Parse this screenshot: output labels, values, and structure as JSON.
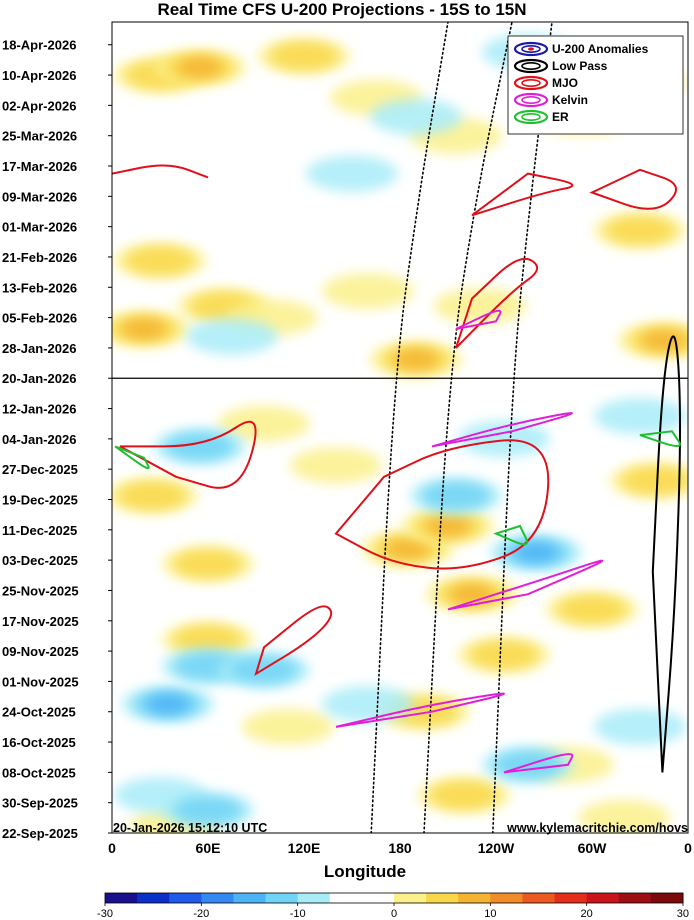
{
  "chart_data": {
    "type": "heatmap",
    "title": "Real Time CFS U-200 Projections - 15S to 15N",
    "xlabel": "Longitude",
    "x_ticks": [
      "0",
      "60E",
      "120E",
      "180",
      "120W",
      "60W",
      "0"
    ],
    "y_ticks": [
      "18-Apr-2026",
      "10-Apr-2026",
      "02-Apr-2026",
      "25-Mar-2026",
      "17-Mar-2026",
      "09-Mar-2026",
      "01-Mar-2026",
      "21-Feb-2026",
      "13-Feb-2026",
      "05-Feb-2026",
      "28-Jan-2026",
      "20-Jan-2026",
      "12-Jan-2026",
      "04-Jan-2026",
      "27-Dec-2025",
      "19-Dec-2025",
      "11-Dec-2025",
      "03-Dec-2025",
      "25-Nov-2025",
      "17-Nov-2025",
      "09-Nov-2025",
      "01-Nov-2025",
      "24-Oct-2025",
      "16-Oct-2025",
      "08-Oct-2025",
      "30-Sep-2025",
      "22-Sep-2025"
    ],
    "ylim": [
      "22-Sep-2025",
      "24-Apr-2026"
    ],
    "xlim": [
      0,
      360
    ],
    "current_date": "20-Jan-2026",
    "legend": {
      "placement": "top-right",
      "entries": [
        {
          "name": "U-200 Anomalies",
          "color": "#1a1aa6"
        },
        {
          "name": "Low Pass",
          "color": "#000000"
        },
        {
          "name": "MJO",
          "color": "#e0101a"
        },
        {
          "name": "Kelvin",
          "color": "#e020d8"
        },
        {
          "name": "ER",
          "color": "#20c030"
        }
      ]
    },
    "colorbar": {
      "ticks": [
        "-30",
        "-20",
        "-10",
        "0",
        "10",
        "20",
        "30"
      ],
      "colors": [
        "#1a0f8c",
        "#0b2fc9",
        "#1f5be8",
        "#3388f2",
        "#4db3f7",
        "#70d4f6",
        "#a8ecf8",
        "#ffffff",
        "#ffffff",
        "#fbf08a",
        "#f9d74a",
        "#f5b332",
        "#f08d2a",
        "#ec5a22",
        "#e52d1c",
        "#c8141a",
        "#9c0f12",
        "#7a0a0c"
      ]
    },
    "anomaly_patches": [
      {
        "lon": 30,
        "date": "2026-04-10",
        "sign": "pos",
        "intensity": 2
      },
      {
        "lon": 55,
        "date": "2026-04-12",
        "sign": "pos",
        "intensity": 3
      },
      {
        "lon": 120,
        "date": "2026-04-15",
        "sign": "pos",
        "intensity": 2
      },
      {
        "lon": 165,
        "date": "2026-04-04",
        "sign": "pos",
        "intensity": 1
      },
      {
        "lon": 295,
        "date": "2026-03-30",
        "sign": "pos",
        "intensity": 1
      },
      {
        "lon": 330,
        "date": "2026-04-08",
        "sign": "pos",
        "intensity": 2
      },
      {
        "lon": 30,
        "date": "2026-02-20",
        "sign": "pos",
        "intensity": 2
      },
      {
        "lon": 20,
        "date": "2026-02-02",
        "sign": "pos",
        "intensity": 3
      },
      {
        "lon": 70,
        "date": "2026-02-08",
        "sign": "pos",
        "intensity": 2
      },
      {
        "lon": 100,
        "date": "2026-02-05",
        "sign": "pos",
        "intensity": 1
      },
      {
        "lon": 160,
        "date": "2026-02-12",
        "sign": "pos",
        "intensity": 1
      },
      {
        "lon": 215,
        "date": "2026-03-25",
        "sign": "pos",
        "intensity": 1
      },
      {
        "lon": 330,
        "date": "2026-02-28",
        "sign": "pos",
        "intensity": 2
      },
      {
        "lon": 345,
        "date": "2026-01-30",
        "sign": "pos",
        "intensity": 3
      },
      {
        "lon": 190,
        "date": "2026-01-25",
        "sign": "pos",
        "intensity": 3
      },
      {
        "lon": 230,
        "date": "2026-02-08",
        "sign": "pos",
        "intensity": 1
      },
      {
        "lon": 25,
        "date": "2025-12-20",
        "sign": "pos",
        "intensity": 2
      },
      {
        "lon": 60,
        "date": "2025-12-02",
        "sign": "pos",
        "intensity": 2
      },
      {
        "lon": 95,
        "date": "2026-01-08",
        "sign": "pos",
        "intensity": 1
      },
      {
        "lon": 140,
        "date": "2025-12-28",
        "sign": "pos",
        "intensity": 1
      },
      {
        "lon": 185,
        "date": "2025-12-06",
        "sign": "pos",
        "intensity": 3
      },
      {
        "lon": 210,
        "date": "2025-12-12",
        "sign": "pos",
        "intensity": 3
      },
      {
        "lon": 225,
        "date": "2025-11-24",
        "sign": "pos",
        "intensity": 3
      },
      {
        "lon": 245,
        "date": "2025-11-08",
        "sign": "pos",
        "intensity": 2
      },
      {
        "lon": 195,
        "date": "2025-10-24",
        "sign": "pos",
        "intensity": 2
      },
      {
        "lon": 220,
        "date": "2025-10-02",
        "sign": "pos",
        "intensity": 2
      },
      {
        "lon": 300,
        "date": "2025-11-20",
        "sign": "pos",
        "intensity": 2
      },
      {
        "lon": 340,
        "date": "2025-12-24",
        "sign": "pos",
        "intensity": 2
      },
      {
        "lon": 60,
        "date": "2025-11-12",
        "sign": "pos",
        "intensity": 2
      },
      {
        "lon": 110,
        "date": "2025-10-20",
        "sign": "pos",
        "intensity": 1
      },
      {
        "lon": 285,
        "date": "2025-10-10",
        "sign": "pos",
        "intensity": 1
      },
      {
        "lon": 40,
        "date": "2025-09-24",
        "sign": "pos",
        "intensity": 1
      },
      {
        "lon": 320,
        "date": "2025-09-26",
        "sign": "pos",
        "intensity": 1
      },
      {
        "lon": 150,
        "date": "2026-03-15",
        "sign": "neg",
        "intensity": 1
      },
      {
        "lon": 190,
        "date": "2026-03-30",
        "sign": "neg",
        "intensity": 1
      },
      {
        "lon": 260,
        "date": "2026-04-16",
        "sign": "neg",
        "intensity": 1
      },
      {
        "lon": 75,
        "date": "2026-01-31",
        "sign": "neg",
        "intensity": 1
      },
      {
        "lon": 55,
        "date": "2026-01-02",
        "sign": "neg",
        "intensity": 2
      },
      {
        "lon": 215,
        "date": "2025-12-20",
        "sign": "neg",
        "intensity": 2
      },
      {
        "lon": 265,
        "date": "2025-12-05",
        "sign": "neg",
        "intensity": 3
      },
      {
        "lon": 245,
        "date": "2026-01-04",
        "sign": "neg",
        "intensity": 1
      },
      {
        "lon": 330,
        "date": "2026-01-10",
        "sign": "neg",
        "intensity": 1
      },
      {
        "lon": 35,
        "date": "2025-10-26",
        "sign": "neg",
        "intensity": 3
      },
      {
        "lon": 60,
        "date": "2025-11-05",
        "sign": "neg",
        "intensity": 2
      },
      {
        "lon": 95,
        "date": "2025-11-04",
        "sign": "neg",
        "intensity": 2
      },
      {
        "lon": 30,
        "date": "2025-10-02",
        "sign": "neg",
        "intensity": 1
      },
      {
        "lon": 60,
        "date": "2025-09-28",
        "sign": "neg",
        "intensity": 2
      },
      {
        "lon": 260,
        "date": "2025-10-10",
        "sign": "neg",
        "intensity": 2
      },
      {
        "lon": 160,
        "date": "2025-10-26",
        "sign": "neg",
        "intensity": 1
      },
      {
        "lon": 330,
        "date": "2025-10-20",
        "sign": "neg",
        "intensity": 1
      }
    ],
    "contours": [
      {
        "name": "Low Pass",
        "color": "#000000",
        "style": "dotted",
        "points": [
          [
            162,
            "2025-09-22"
          ],
          [
            176,
            "2026-01-20"
          ],
          [
            192,
            "2026-03-10"
          ],
          [
            210,
            "2026-04-24"
          ]
        ]
      },
      {
        "name": "Low Pass",
        "color": "#000000",
        "style": "dotted",
        "points": [
          [
            195,
            "2025-09-22"
          ],
          [
            210,
            "2026-01-20"
          ],
          [
            228,
            "2026-03-10"
          ],
          [
            250,
            "2026-04-24"
          ]
        ]
      },
      {
        "name": "Low Pass",
        "color": "#000000",
        "style": "dotted",
        "points": [
          [
            238,
            "2025-09-22"
          ],
          [
            250,
            "2026-01-20"
          ],
          [
            262,
            "2026-03-10"
          ],
          [
            275,
            "2026-04-24"
          ]
        ]
      },
      {
        "name": "Low Pass",
        "color": "#000000",
        "style": "solid",
        "closed": true,
        "points": [
          [
            344,
            "2025-10-08"
          ],
          [
            352,
            "2025-11-20"
          ],
          [
            356,
            "2026-01-10"
          ],
          [
            352,
            "2026-02-05"
          ],
          [
            344,
            "2026-01-20"
          ],
          [
            338,
            "2025-11-30"
          ]
        ]
      },
      {
        "name": "MJO",
        "color": "#e0101a",
        "style": "solid",
        "closed": true,
        "points": [
          [
            90,
            "2025-11-03"
          ],
          [
            125,
            "2025-11-12"
          ],
          [
            140,
            "2025-11-19"
          ],
          [
            130,
            "2025-11-22"
          ],
          [
            95,
            "2025-11-10"
          ]
        ]
      },
      {
        "name": "MJO",
        "color": "#e0101a",
        "style": "solid",
        "closed": true,
        "points": [
          [
            140,
            "2025-12-10"
          ],
          [
            175,
            "2025-12-02"
          ],
          [
            220,
            "2025-11-30"
          ],
          [
            270,
            "2025-12-08"
          ],
          [
            275,
            "2026-01-05"
          ],
          [
            210,
            "2026-01-02"
          ],
          [
            170,
            "2025-12-25"
          ]
        ]
      },
      {
        "name": "MJO",
        "color": "#e0101a",
        "style": "solid",
        "closed": true,
        "points": [
          [
            5,
            "2026-01-02"
          ],
          [
            60,
            "2026-01-02"
          ],
          [
            95,
            "2026-01-12"
          ],
          [
            80,
            "2025-12-20"
          ],
          [
            40,
            "2025-12-25"
          ]
        ]
      },
      {
        "name": "MJO",
        "color": "#e0101a",
        "style": "solid",
        "closed": true,
        "points": [
          [
            215,
            "2026-01-28"
          ],
          [
            250,
            "2026-02-12"
          ],
          [
            270,
            "2026-02-18"
          ],
          [
            255,
            "2026-02-22"
          ],
          [
            225,
            "2026-02-10"
          ]
        ]
      },
      {
        "name": "MJO",
        "color": "#e0101a",
        "style": "solid",
        "closed": true,
        "points": [
          [
            225,
            "2026-03-04"
          ],
          [
            270,
            "2026-03-10"
          ],
          [
            295,
            "2026-03-12"
          ],
          [
            260,
            "2026-03-15"
          ]
        ]
      },
      {
        "name": "MJO",
        "color": "#e0101a",
        "style": "solid",
        "closed": true,
        "points": [
          [
            300,
            "2026-03-10"
          ],
          [
            340,
            "2026-03-04"
          ],
          [
            358,
            "2026-03-12"
          ],
          [
            330,
            "2026-03-16"
          ]
        ]
      },
      {
        "name": "MJO",
        "color": "#e0101a",
        "style": "solid",
        "points": [
          [
            0,
            "2026-03-15"
          ],
          [
            35,
            "2026-03-18"
          ],
          [
            60,
            "2026-03-14"
          ]
        ]
      },
      {
        "name": "Kelvin",
        "color": "#e020d8",
        "style": "solid",
        "closed": true,
        "points": [
          [
            140,
            "2025-10-20"
          ],
          [
            200,
            "2025-10-26"
          ],
          [
            260,
            "2025-10-30"
          ],
          [
            200,
            "2025-10-24"
          ]
        ]
      },
      {
        "name": "Kelvin",
        "color": "#e020d8",
        "style": "solid",
        "closed": true,
        "points": [
          [
            210,
            "2025-11-20"
          ],
          [
            270,
            "2025-11-28"
          ],
          [
            320,
            "2025-12-05"
          ],
          [
            260,
            "2025-11-24"
          ]
        ]
      },
      {
        "name": "Kelvin",
        "color": "#e020d8",
        "style": "solid",
        "closed": true,
        "points": [
          [
            200,
            "2026-01-02"
          ],
          [
            250,
            "2026-01-08"
          ],
          [
            300,
            "2026-01-12"
          ],
          [
            250,
            "2026-01-06"
          ]
        ]
      },
      {
        "name": "Kelvin",
        "color": "#e020d8",
        "style": "solid",
        "closed": true,
        "points": [
          [
            245,
            "2025-10-08"
          ],
          [
            290,
            "2025-10-14"
          ],
          [
            285,
            "2025-10-10"
          ]
        ]
      },
      {
        "name": "Kelvin",
        "color": "#e020d8",
        "style": "solid",
        "closed": true,
        "points": [
          [
            215,
            "2026-02-02"
          ],
          [
            245,
            "2026-02-08"
          ],
          [
            240,
            "2026-02-04"
          ]
        ]
      },
      {
        "name": "ER",
        "color": "#20c030",
        "style": "solid",
        "closed": true,
        "points": [
          [
            240,
            "2025-12-10"
          ],
          [
            262,
            "2025-12-06"
          ],
          [
            255,
            "2025-12-12"
          ]
        ]
      },
      {
        "name": "ER",
        "color": "#20c030",
        "style": "solid",
        "closed": true,
        "points": [
          [
            2,
            "2026-01-02"
          ],
          [
            25,
            "2025-12-26"
          ],
          [
            20,
            "2025-12-30"
          ]
        ]
      },
      {
        "name": "ER",
        "color": "#20c030",
        "style": "solid",
        "closed": true,
        "points": [
          [
            330,
            "2026-01-05"
          ],
          [
            358,
            "2026-01-01"
          ],
          [
            350,
            "2026-01-06"
          ]
        ]
      }
    ],
    "grid": false
  },
  "footer": {
    "timestamp": "20-Jan-2026 15:12:10 UTC",
    "credit": "www.kylemacritchie.com/hovs"
  }
}
